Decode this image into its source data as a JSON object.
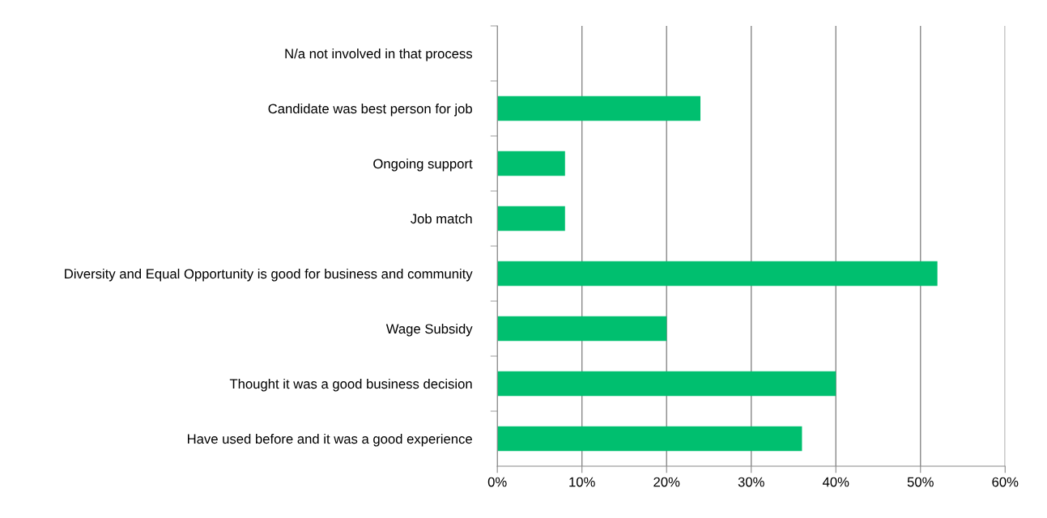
{
  "chart_data": {
    "type": "bar",
    "orientation": "horizontal",
    "categories": [
      "N/a not involved in that process",
      "Candidate was best person for job",
      "Ongoing support",
      "Job match",
      "Diversity and Equal Opportunity is good for business and community",
      "Wage Subsidy",
      "Thought it was a good business decision",
      "Have used before and it was a good experience"
    ],
    "values": [
      0,
      24,
      8,
      8,
      52,
      20,
      40,
      36
    ],
    "color": "#00bf6f",
    "xlim": [
      0,
      60
    ],
    "xticks": [
      {
        "value": 0,
        "label": "0%"
      },
      {
        "value": 10,
        "label": "10%"
      },
      {
        "value": 20,
        "label": "20%"
      },
      {
        "value": 30,
        "label": "30%"
      },
      {
        "value": 40,
        "label": "40%"
      },
      {
        "value": 50,
        "label": "50%"
      },
      {
        "value": 60,
        "label": "60%"
      }
    ],
    "grid": "x"
  }
}
